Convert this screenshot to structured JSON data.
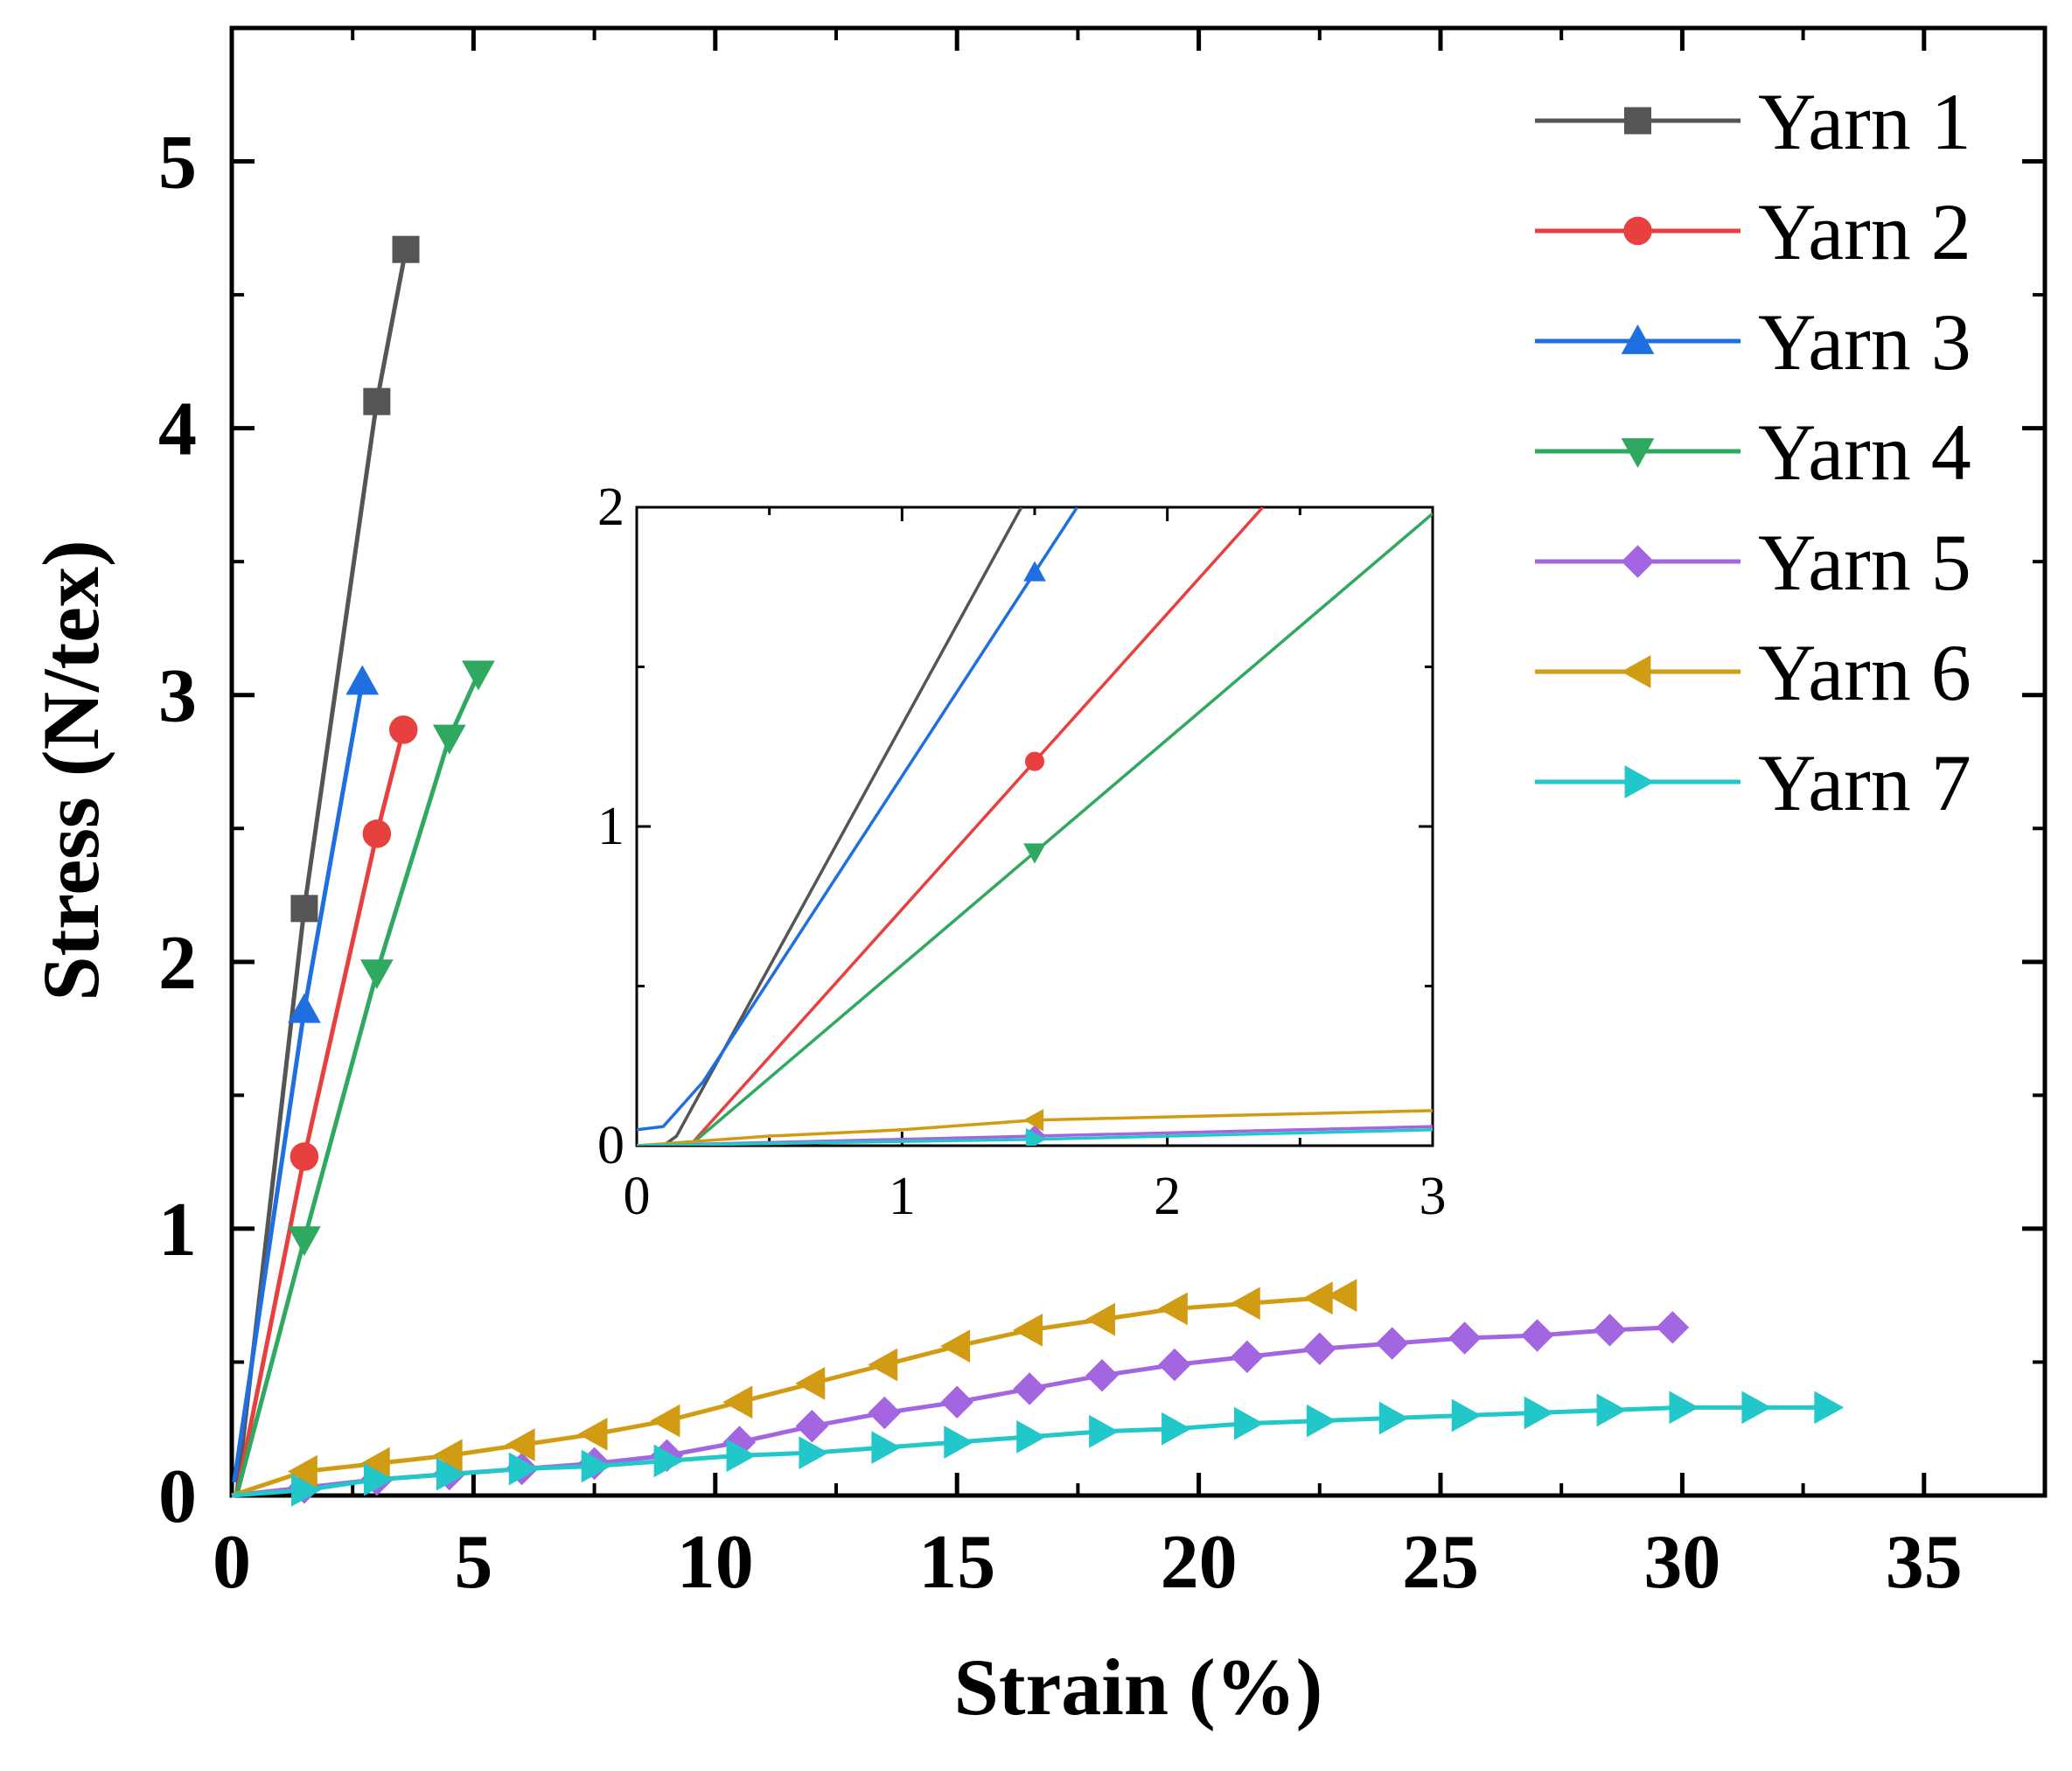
{
  "chart_data": [
    {
      "type": "line",
      "title": "",
      "xlabel": "Strain (%)",
      "ylabel": "Stress (N/tex)",
      "xlim": [
        0,
        37.5
      ],
      "ylim": [
        0,
        5.5
      ],
      "xticks": [
        0,
        5,
        10,
        15,
        20,
        25,
        30,
        35
      ],
      "yticks": [
        0,
        1,
        2,
        3,
        4,
        5
      ],
      "xtick_labels": [
        "0",
        "5",
        "10",
        "15",
        "20",
        "25",
        "30",
        "35"
      ],
      "ytick_labels": [
        "0",
        "1",
        "2",
        "3",
        "4",
        "5"
      ],
      "grid": false,
      "legend_position": "top-right",
      "series": [
        {
          "name": "Yarn 1",
          "color": "#555555",
          "marker": "square",
          "x": [
            0.1,
            1.5,
            3.0,
            3.6
          ],
          "y": [
            0.0,
            2.2,
            4.1,
            4.67
          ]
        },
        {
          "name": "Yarn 2",
          "color": "#e8403f",
          "marker": "circle",
          "x": [
            0.1,
            1.5,
            3.0,
            3.55
          ],
          "y": [
            0.0,
            1.27,
            2.48,
            2.87
          ]
        },
        {
          "name": "Yarn 3",
          "color": "#1f6fe0",
          "marker": "triangle-up",
          "x": [
            0.05,
            1.5,
            2.7
          ],
          "y": [
            0.05,
            1.82,
            3.05
          ]
        },
        {
          "name": "Yarn 4",
          "color": "#2fa860",
          "marker": "triangle-down",
          "x": [
            0.1,
            1.5,
            3.0,
            4.5,
            5.1
          ],
          "y": [
            0.0,
            0.96,
            1.96,
            2.84,
            3.08
          ]
        },
        {
          "name": "Yarn 5",
          "color": "#a365e0",
          "marker": "diamond",
          "x": [
            0,
            1.5,
            3,
            4.5,
            6,
            7.5,
            9,
            10.5,
            12,
            13.5,
            15,
            16.5,
            18,
            19.5,
            21,
            22.5,
            24,
            25.5,
            27,
            28.5,
            29.8
          ],
          "y": [
            0,
            0.03,
            0.06,
            0.08,
            0.1,
            0.12,
            0.15,
            0.2,
            0.26,
            0.31,
            0.35,
            0.4,
            0.45,
            0.49,
            0.52,
            0.55,
            0.57,
            0.59,
            0.6,
            0.62,
            0.63
          ]
        },
        {
          "name": "Yarn 6",
          "color": "#d19b14",
          "marker": "triangle-left",
          "x": [
            0,
            1.5,
            3,
            4.5,
            6,
            7.5,
            9,
            10.5,
            12,
            13.5,
            15,
            16.5,
            18,
            19.5,
            21,
            22.5,
            23
          ],
          "y": [
            0,
            0.09,
            0.12,
            0.15,
            0.19,
            0.23,
            0.28,
            0.35,
            0.42,
            0.49,
            0.56,
            0.62,
            0.66,
            0.7,
            0.72,
            0.74,
            0.75
          ]
        },
        {
          "name": "Yarn 7",
          "color": "#22c7c9",
          "marker": "triangle-right",
          "x": [
            0,
            1.5,
            3,
            4.5,
            6,
            7.5,
            9,
            10.5,
            12,
            13.5,
            15,
            16.5,
            18,
            19.5,
            21,
            22.5,
            24,
            25.5,
            27,
            28.5,
            30,
            31.5,
            33
          ],
          "y": [
            0,
            0.02,
            0.06,
            0.08,
            0.1,
            0.11,
            0.13,
            0.15,
            0.16,
            0.18,
            0.2,
            0.22,
            0.24,
            0.25,
            0.27,
            0.28,
            0.29,
            0.3,
            0.31,
            0.32,
            0.33,
            0.33,
            0.33
          ]
        }
      ]
    },
    {
      "type": "line",
      "title": "",
      "xlabel": "",
      "ylabel": "",
      "xlim": [
        0,
        3
      ],
      "ylim": [
        0,
        2
      ],
      "xticks": [
        0,
        1,
        2,
        3
      ],
      "yticks": [
        0,
        1,
        2
      ],
      "xtick_labels": [
        "0",
        "1",
        "2",
        "3"
      ],
      "ytick_labels": [
        "0",
        "1",
        "2"
      ],
      "grid": false,
      "legend_position": "none",
      "series": [
        {
          "name": "Yarn 1",
          "color": "#555555",
          "marker": "square",
          "x": [
            0.0,
            0.1,
            0.15,
            1.45
          ],
          "y": [
            0.0,
            0.0,
            0.03,
            2.0
          ],
          "marker_x": []
        },
        {
          "name": "Yarn 2",
          "color": "#e8403f",
          "marker": "circle",
          "x": [
            0.0,
            0.2,
            2.36
          ],
          "y": [
            0.0,
            0.0,
            2.0
          ],
          "marker_x": [
            1.5
          ]
        },
        {
          "name": "Yarn 3",
          "color": "#1f6fe0",
          "marker": "triangle-up",
          "x": [
            0.0,
            0.1,
            0.25,
            1.66
          ],
          "y": [
            0.05,
            0.06,
            0.2,
            2.0
          ],
          "marker_x": [
            1.5
          ]
        },
        {
          "name": "Yarn 4",
          "color": "#2fa860",
          "marker": "triangle-down",
          "x": [
            0.0,
            0.2,
            3.0
          ],
          "y": [
            0.0,
            0.0,
            1.98
          ],
          "marker_x": [
            1.5
          ]
        },
        {
          "name": "Yarn 5",
          "color": "#a365e0",
          "marker": "diamond",
          "x": [
            0.0,
            1.5,
            3.0
          ],
          "y": [
            0.0,
            0.03,
            0.06
          ],
          "marker_x": [
            1.5
          ]
        },
        {
          "name": "Yarn 6",
          "color": "#d19b14",
          "marker": "triangle-left",
          "x": [
            0.0,
            0.5,
            1.0,
            1.5,
            2.0,
            2.5,
            3.0
          ],
          "y": [
            0.0,
            0.03,
            0.05,
            0.08,
            0.09,
            0.1,
            0.11
          ],
          "marker_x": [
            1.5
          ]
        },
        {
          "name": "Yarn 7",
          "color": "#22c7c9",
          "marker": "triangle-right",
          "x": [
            0.0,
            1.5,
            3.0
          ],
          "y": [
            0.0,
            0.02,
            0.05
          ],
          "marker_x": [
            1.5
          ]
        }
      ]
    }
  ]
}
